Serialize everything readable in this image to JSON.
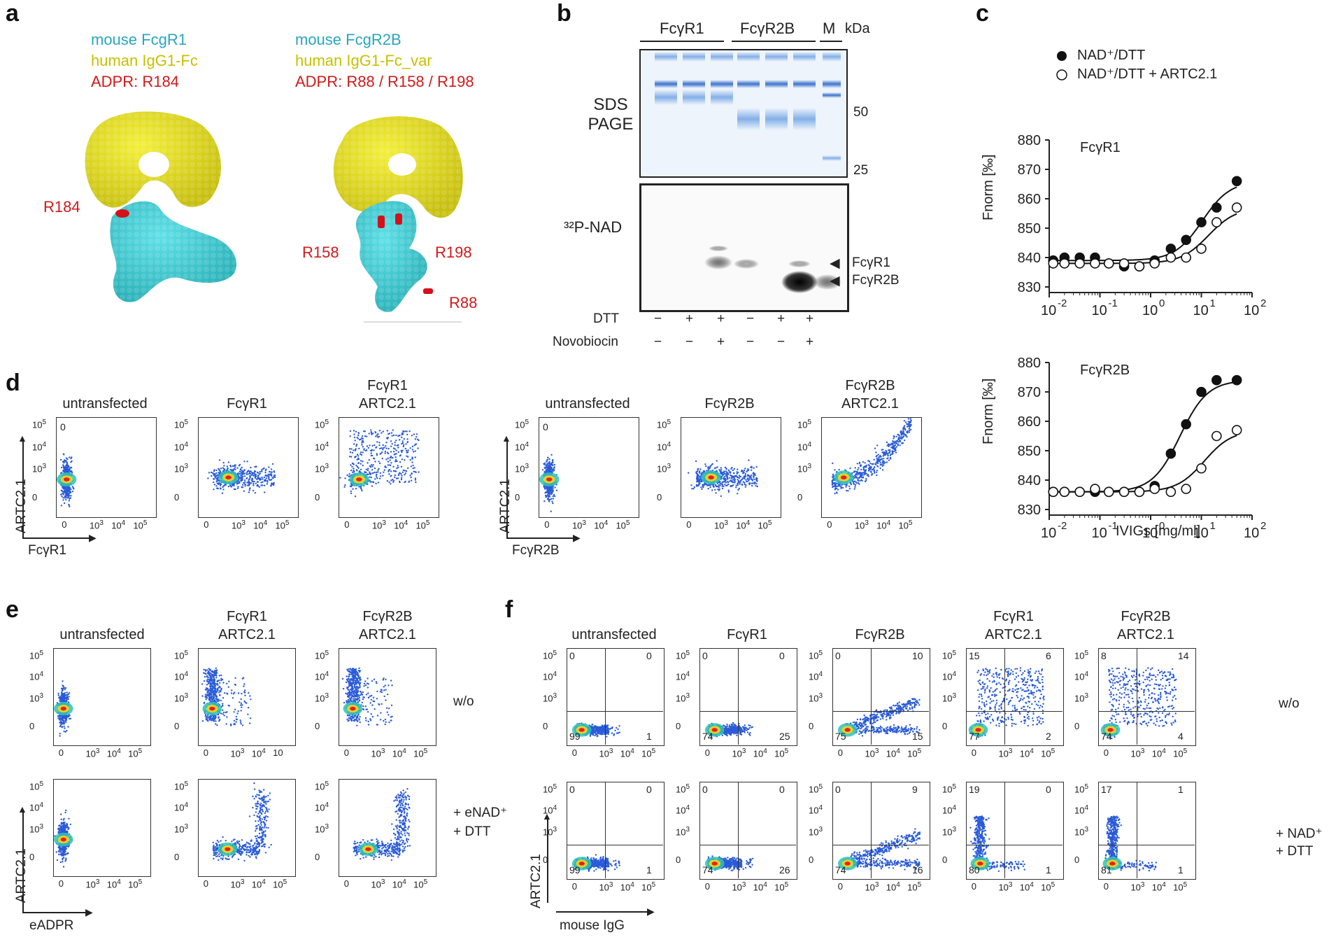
{
  "panels": {
    "a": "a",
    "b": "b",
    "c": "c",
    "d": "d",
    "e": "e",
    "f": "f"
  },
  "panel_a": {
    "left": {
      "line1": "mouse FcgR1",
      "line2": "human IgG1-Fc",
      "line3": "ADPR: R184",
      "site_label": "R184"
    },
    "right": {
      "line1": "mouse FcgR2B",
      "line2": "human IgG1-Fc_var",
      "line3": "ADPR: R88 / R158 / R198",
      "site_labels": [
        "R158",
        "R198",
        "R88"
      ]
    }
  },
  "panel_b": {
    "groups": [
      "FcγR1",
      "FcγR2B",
      "M"
    ],
    "kda": "kDa",
    "gel1_label": "SDS\nPAGE",
    "gel1_label_l1": "SDS",
    "gel1_label_l2": "PAGE",
    "gel2_label": "³²P-NAD",
    "markers": [
      "50",
      "25"
    ],
    "bands": [
      "FcγR1",
      "FcγR2B"
    ],
    "row_labels": [
      "DTT",
      "Novobiocin"
    ],
    "dtt": [
      "−",
      "+",
      "+",
      "−",
      "+",
      "+"
    ],
    "novobiocin": [
      "−",
      "−",
      "+",
      "−",
      "−",
      "+"
    ]
  },
  "panel_c": {
    "legend": [
      "NAD⁺/DTT",
      "NAD⁺/DTT + ARTC2.1"
    ],
    "ylabel": "Fnorm [‰]",
    "xlabel": "IVIGs [mg/ml]",
    "yticks": [
      "880",
      "870",
      "860",
      "850",
      "840",
      "830"
    ],
    "xticks": [
      "10",
      "10",
      "10",
      "10",
      "10"
    ],
    "xexp": [
      "-2",
      "-1",
      "0",
      "1",
      "2"
    ],
    "plots": [
      {
        "title": "FcγR1"
      },
      {
        "title": "FcγR2B"
      }
    ]
  },
  "chart_data": [
    {
      "type": "scatter",
      "title": "FcγR1",
      "xlabel": "IVIGs [mg/ml]",
      "ylabel": "Fnorm [‰]",
      "xscale": "log",
      "xlim": [
        0.01,
        100
      ],
      "ylim": [
        830,
        880
      ],
      "series": [
        {
          "name": "NAD⁺/DTT",
          "marker": "filled",
          "x": [
            0.012,
            0.02,
            0.04,
            0.08,
            0.15,
            0.3,
            0.6,
            1.2,
            2.5,
            5,
            10,
            20,
            50
          ],
          "y": [
            839,
            840,
            840,
            840,
            838,
            837,
            837,
            839,
            843,
            846,
            852,
            857,
            866
          ]
        },
        {
          "name": "NAD⁺/DTT + ARTC2.1",
          "marker": "open",
          "x": [
            0.012,
            0.02,
            0.04,
            0.08,
            0.15,
            0.3,
            0.6,
            1.2,
            2.5,
            5,
            10,
            20,
            50
          ],
          "y": [
            838,
            838,
            838,
            838,
            838,
            838,
            837,
            838,
            840,
            840,
            843,
            852,
            857
          ]
        }
      ]
    },
    {
      "type": "scatter",
      "title": "FcγR2B",
      "xlabel": "IVIGs [mg/ml]",
      "ylabel": "Fnorm [‰]",
      "xscale": "log",
      "xlim": [
        0.01,
        100
      ],
      "ylim": [
        830,
        880
      ],
      "series": [
        {
          "name": "NAD⁺/DTT",
          "marker": "filled",
          "x": [
            0.012,
            0.02,
            0.04,
            0.08,
            0.15,
            0.3,
            0.6,
            1.2,
            2.5,
            5,
            10,
            20,
            50
          ],
          "y": [
            836,
            836,
            836,
            836,
            836,
            836,
            836,
            838,
            849,
            859,
            870,
            874,
            874
          ]
        },
        {
          "name": "NAD⁺/DTT + ARTC2.1",
          "marker": "open",
          "x": [
            0.012,
            0.02,
            0.04,
            0.08,
            0.15,
            0.3,
            0.6,
            1.2,
            2.5,
            5,
            10,
            20,
            50
          ],
          "y": [
            836,
            836,
            836,
            837,
            836,
            836,
            836,
            837,
            836,
            837,
            844,
            855,
            857
          ]
        }
      ]
    }
  ],
  "panel_d": {
    "titles": [
      "untransfected",
      "FcγR1",
      "FcγR1\nARTC2.1",
      "untransfected",
      "FcγR2B",
      "FcγR2B\nARTC2.1"
    ],
    "title_lines": [
      [
        "untransfected",
        ""
      ],
      [
        "FcγR1",
        ""
      ],
      [
        "FcγR1",
        "ARTC2.1"
      ],
      [
        "untransfected",
        ""
      ],
      [
        "FcγR2B",
        ""
      ],
      [
        "FcγR2B",
        "ARTC2.1"
      ]
    ],
    "ylabel": "ARTC2.1",
    "xlabels": [
      "FcγR1",
      "FcγR2B"
    ],
    "gate": "0"
  },
  "panel_e": {
    "titles": [
      [
        "untransfected",
        ""
      ],
      [
        "FcγR1",
        "ARTC2.1"
      ],
      [
        "FcγR2B",
        "ARTC2.1"
      ]
    ],
    "row_labels": [
      [
        "w/o",
        ""
      ],
      [
        "+ eNAD⁺",
        "+ DTT"
      ]
    ],
    "ylabel": "ARTC2.1",
    "xlabel": "eADPR",
    "odd_tick": "10"
  },
  "panel_f": {
    "titles": [
      [
        "untransfected",
        ""
      ],
      [
        "FcγR1",
        ""
      ],
      [
        "FcγR2B",
        ""
      ],
      [
        "FcγR1",
        "ARTC2.1"
      ],
      [
        "FcγR2B",
        "ARTC2.1"
      ]
    ],
    "row_labels": [
      [
        "w/o",
        ""
      ],
      [
        "+ NAD⁺",
        "+ DTT"
      ]
    ],
    "ylabel": "ARTC2.1",
    "xlabel": "mouse IgG",
    "quadrants": [
      [
        [
          "0",
          "0",
          "99",
          "1"
        ],
        [
          "0",
          "0",
          "74",
          "25"
        ],
        [
          "0",
          "10",
          "75",
          "15"
        ],
        [
          "15",
          "6",
          "77",
          "2"
        ],
        [
          "8",
          "14",
          "74",
          "4"
        ]
      ],
      [
        [
          "0",
          "0",
          "99",
          "1"
        ],
        [
          "0",
          "0",
          "74",
          "26"
        ],
        [
          "0",
          "9",
          "74",
          "16"
        ],
        [
          "19",
          "0",
          "80",
          "1"
        ],
        [
          "17",
          "1",
          "81",
          "1"
        ]
      ]
    ]
  },
  "axis": {
    "ten": "10",
    "zero": "0",
    "e3": "3",
    "e4": "4",
    "e5": "5"
  },
  "colors": {
    "cyan": "#3cc9d3",
    "yellow": "#e2dc1c",
    "red": "#d4101a"
  }
}
